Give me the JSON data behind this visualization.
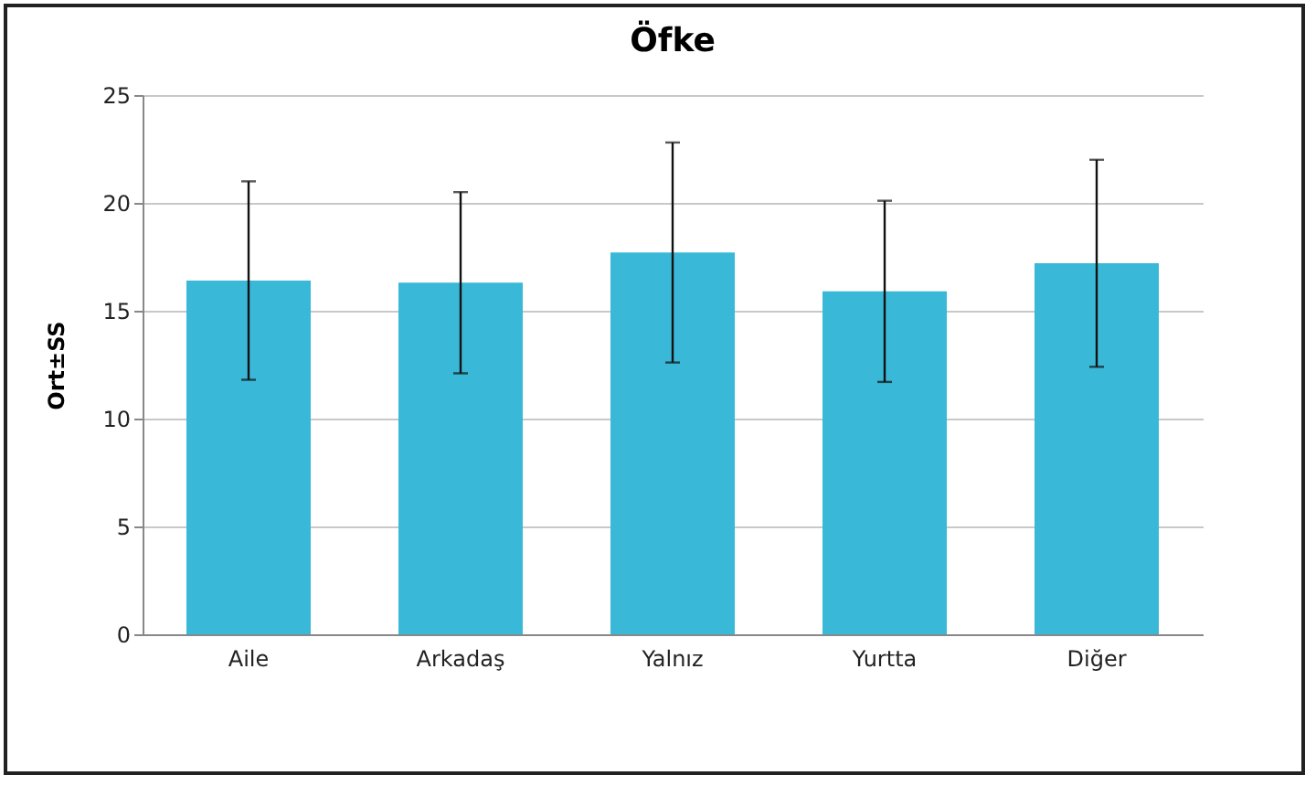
{
  "chart_data": {
    "type": "bar",
    "title": "Öfke",
    "ylabel": "Ort±SS",
    "categories": [
      "Aile",
      "Arkadaş",
      "Yalnız",
      "Yurtta",
      "Diğer"
    ],
    "values": [
      16.4,
      16.3,
      17.7,
      15.9,
      17.2
    ],
    "errors": [
      4.6,
      4.2,
      5.1,
      4.2,
      4.8
    ],
    "color": "#3ab8d8",
    "ylim": [
      0,
      25
    ],
    "yticks": [
      0,
      5,
      10,
      15,
      20,
      25
    ],
    "grid": "y"
  }
}
